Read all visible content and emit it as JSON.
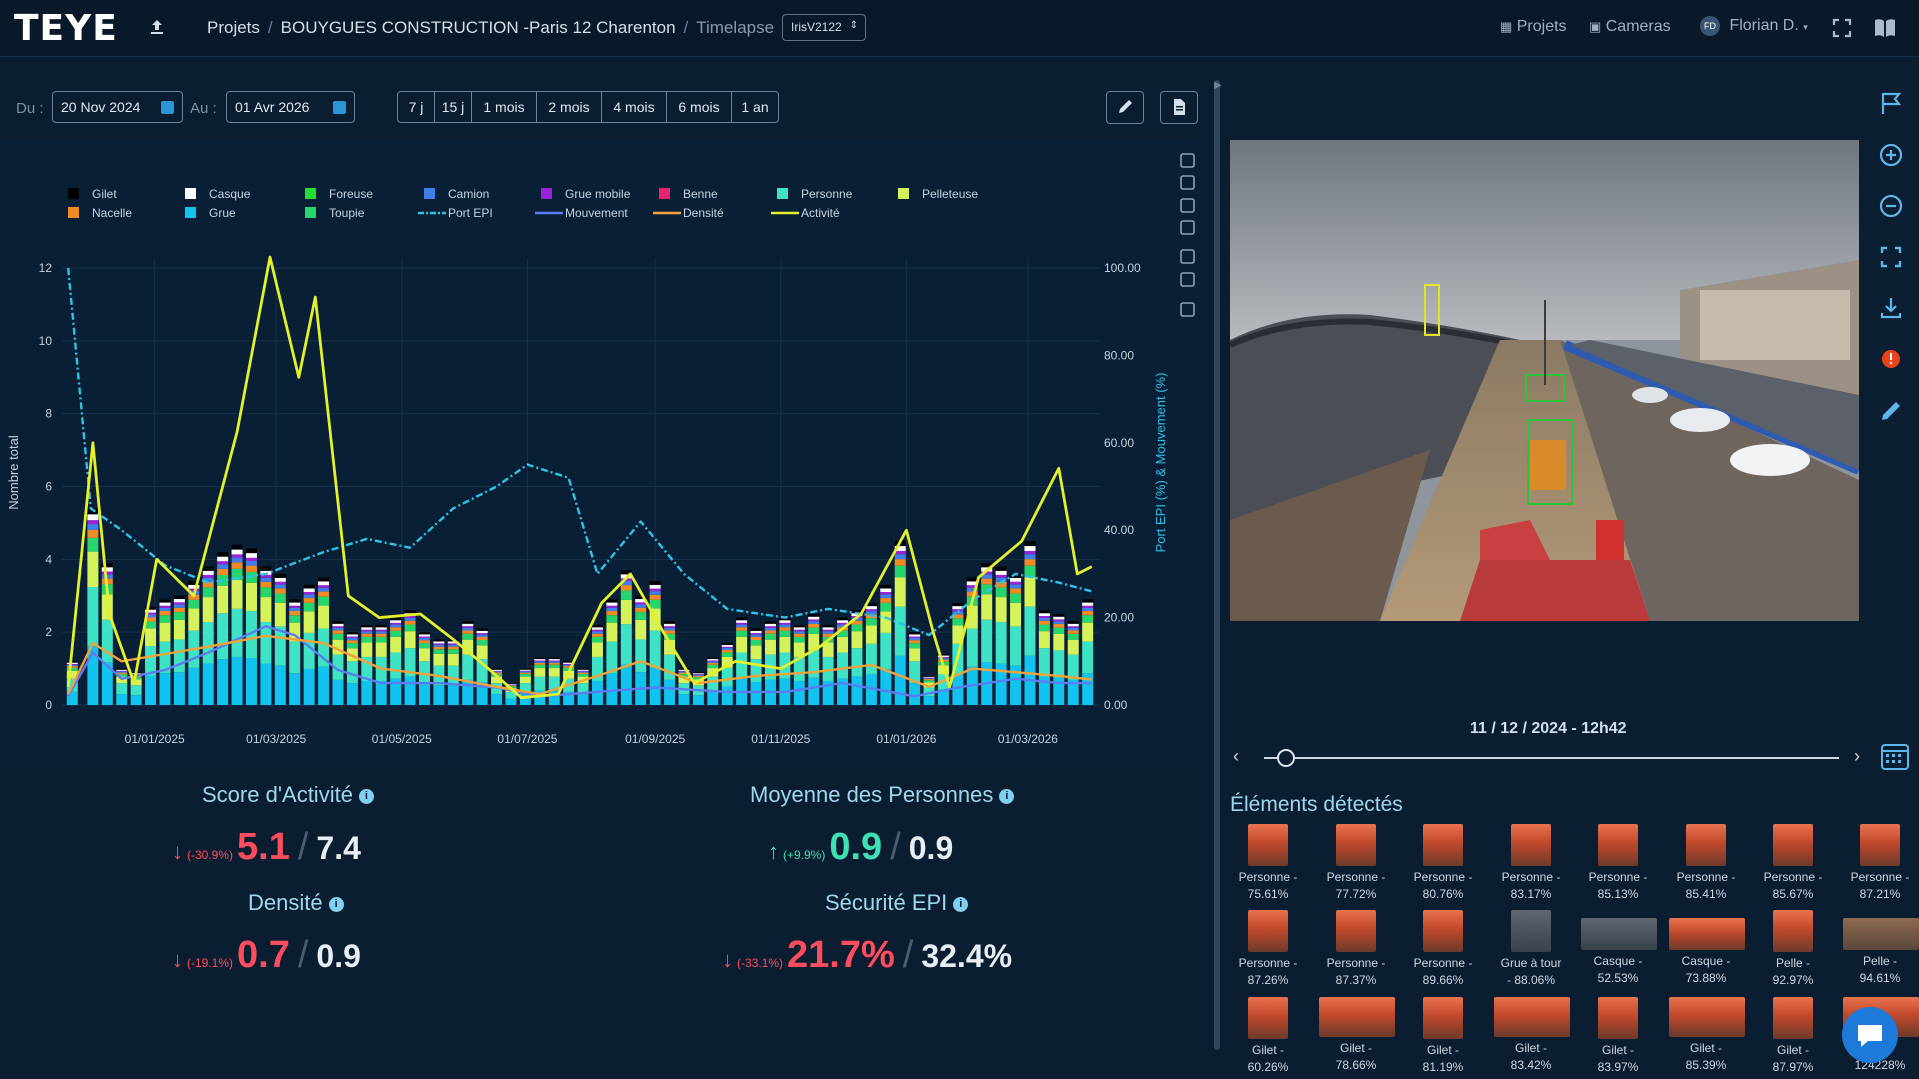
{
  "app": {
    "brand": "TEYE"
  },
  "breadcrumb": {
    "projets": "Projets",
    "project": "BOUYGUES CONSTRUCTION -Paris 12 Charenton",
    "current": "Timelapse",
    "sep": "/"
  },
  "camera_select": {
    "value": "IrisV2122"
  },
  "topnav": {
    "projets": "Projets",
    "cameras": "Cameras",
    "user": "Florian D.",
    "user_initials": "FD"
  },
  "filters": {
    "from_label": "Du :",
    "from_value": "20 Nov 2024",
    "to_label": "Au :",
    "to_value": "01 Avr 2026",
    "ranges": [
      "7 j",
      "15 j",
      "1 mois",
      "2 mois",
      "4 mois",
      "6 mois",
      "1 an"
    ]
  },
  "chart_data": {
    "type": "bar",
    "ylabel": "Nombre total",
    "y2label": "Port EPI (%) & Mouvement (%)",
    "ylim": [
      0,
      12
    ],
    "y2lim": [
      0,
      100
    ],
    "yticks": [
      "0",
      "2",
      "4",
      "6",
      "8",
      "10",
      "12"
    ],
    "y2ticks": [
      "0.00",
      "20.00",
      "40.00",
      "60.00",
      "80.00",
      "100.00"
    ],
    "xticks": [
      "01/01/2025",
      "01/03/2025",
      "01/05/2025",
      "01/07/2025",
      "01/09/2025",
      "01/11/2025",
      "01/01/2026",
      "01/03/2026"
    ],
    "legend_placement": "top-left",
    "legend": [
      {
        "name": "Gilet",
        "color": "#000000",
        "kind": "box"
      },
      {
        "name": "Casque",
        "color": "#ffffff",
        "kind": "box"
      },
      {
        "name": "Foreuse",
        "color": "#22dd33",
        "kind": "box"
      },
      {
        "name": "Camion",
        "color": "#3e7fe8",
        "kind": "box"
      },
      {
        "name": "Grue mobile",
        "color": "#9b22d8",
        "kind": "box"
      },
      {
        "name": "Benne",
        "color": "#e8226e",
        "kind": "box"
      },
      {
        "name": "Personne",
        "color": "#3ee3c5",
        "kind": "box"
      },
      {
        "name": "Pelleteuse",
        "color": "#d6f25a",
        "kind": "box"
      },
      {
        "name": "Nacelle",
        "color": "#f08a24",
        "kind": "box"
      },
      {
        "name": "Grue",
        "color": "#12c3ef",
        "kind": "box"
      },
      {
        "name": "Toupie",
        "color": "#27d56e",
        "kind": "box"
      },
      {
        "name": "Port EPI",
        "color": "#2fc3e6",
        "kind": "dash"
      },
      {
        "name": "Mouvement",
        "color": "#5d7cf0",
        "kind": "line"
      },
      {
        "name": "Densité",
        "color": "#f2a23a",
        "kind": "line"
      },
      {
        "name": "Activité",
        "color": "#e3f02a",
        "kind": "line"
      }
    ],
    "bars": [
      {
        "x": "2024-11-22",
        "total": 1.2
      },
      {
        "x": "2024-12-02",
        "total": 5.4
      },
      {
        "x": "2024-12-09",
        "total": 3.9
      },
      {
        "x": "2024-12-16",
        "total": 1.0
      },
      {
        "x": "2024-12-23",
        "total": 0.9
      },
      {
        "x": "2024-12-30",
        "total": 2.7
      },
      {
        "x": "2025-01-06",
        "total": 2.9
      },
      {
        "x": "2025-01-13",
        "total": 3.0
      },
      {
        "x": "2025-01-20",
        "total": 3.4
      },
      {
        "x": "2025-01-27",
        "total": 3.8
      },
      {
        "x": "2025-02-03",
        "total": 4.2
      },
      {
        "x": "2025-02-10",
        "total": 4.4
      },
      {
        "x": "2025-02-17",
        "total": 4.3
      },
      {
        "x": "2025-02-24",
        "total": 3.8
      },
      {
        "x": "2025-03-03",
        "total": 3.6
      },
      {
        "x": "2025-03-10",
        "total": 2.9
      },
      {
        "x": "2025-03-17",
        "total": 3.3
      },
      {
        "x": "2025-03-24",
        "total": 3.5
      },
      {
        "x": "2025-03-31",
        "total": 2.3
      },
      {
        "x": "2025-04-07",
        "total": 2.0
      },
      {
        "x": "2025-04-14",
        "total": 2.2
      },
      {
        "x": "2025-04-21",
        "total": 2.2
      },
      {
        "x": "2025-04-28",
        "total": 2.4
      },
      {
        "x": "2025-05-05",
        "total": 2.6
      },
      {
        "x": "2025-05-12",
        "total": 2.0
      },
      {
        "x": "2025-05-19",
        "total": 1.8
      },
      {
        "x": "2025-05-26",
        "total": 1.8
      },
      {
        "x": "2025-06-02",
        "total": 2.3
      },
      {
        "x": "2025-06-09",
        "total": 2.1
      },
      {
        "x": "2025-06-16",
        "total": 1.0
      },
      {
        "x": "2025-06-23",
        "total": 0.6
      },
      {
        "x": "2025-06-30",
        "total": 1.0
      },
      {
        "x": "2025-07-07",
        "total": 1.3
      },
      {
        "x": "2025-07-14",
        "total": 1.3
      },
      {
        "x": "2025-07-21",
        "total": 1.2
      },
      {
        "x": "2025-07-28",
        "total": 1.0
      },
      {
        "x": "2025-08-04",
        "total": 2.2
      },
      {
        "x": "2025-08-11",
        "total": 2.9
      },
      {
        "x": "2025-08-18",
        "total": 3.7
      },
      {
        "x": "2025-08-25",
        "total": 3.0
      },
      {
        "x": "2025-09-01",
        "total": 3.4
      },
      {
        "x": "2025-09-08",
        "total": 2.3
      },
      {
        "x": "2025-09-15",
        "total": 1.0
      },
      {
        "x": "2025-09-22",
        "total": 0.9
      },
      {
        "x": "2025-09-29",
        "total": 1.3
      },
      {
        "x": "2025-10-06",
        "total": 1.7
      },
      {
        "x": "2025-10-13",
        "total": 2.4
      },
      {
        "x": "2025-10-20",
        "total": 2.1
      },
      {
        "x": "2025-10-27",
        "total": 2.3
      },
      {
        "x": "2025-11-03",
        "total": 2.4
      },
      {
        "x": "2025-11-10",
        "total": 2.2
      },
      {
        "x": "2025-11-17",
        "total": 2.5
      },
      {
        "x": "2025-11-24",
        "total": 2.2
      },
      {
        "x": "2025-12-01",
        "total": 2.4
      },
      {
        "x": "2025-12-08",
        "total": 2.6
      },
      {
        "x": "2025-12-15",
        "total": 2.8
      },
      {
        "x": "2025-12-22",
        "total": 3.3
      },
      {
        "x": "2025-12-29",
        "total": 4.5
      },
      {
        "x": "2026-01-05",
        "total": 2.0
      },
      {
        "x": "2026-01-12",
        "total": 0.8
      },
      {
        "x": "2026-01-19",
        "total": 1.4
      },
      {
        "x": "2026-01-26",
        "total": 2.8
      },
      {
        "x": "2026-02-02",
        "total": 3.5
      },
      {
        "x": "2026-02-09",
        "total": 3.9
      },
      {
        "x": "2026-02-16",
        "total": 3.8
      },
      {
        "x": "2026-02-23",
        "total": 3.6
      },
      {
        "x": "2026-03-02",
        "total": 4.5
      },
      {
        "x": "2026-03-09",
        "total": 2.6
      },
      {
        "x": "2026-03-16",
        "total": 2.5
      },
      {
        "x": "2026-03-23",
        "total": 2.3
      },
      {
        "x": "2026-03-30",
        "total": 2.9
      }
    ],
    "series": [
      {
        "name": "Activité",
        "axis": "y",
        "points": [
          [
            "2024-11-20",
            0.5
          ],
          [
            "2024-12-02",
            7.2
          ],
          [
            "2024-12-10",
            2.5
          ],
          [
            "2024-12-22",
            0.6
          ],
          [
            "2025-01-02",
            4.0
          ],
          [
            "2025-01-20",
            3.0
          ],
          [
            "2025-02-10",
            7.5
          ],
          [
            "2025-02-26",
            12.3
          ],
          [
            "2025-03-12",
            9.0
          ],
          [
            "2025-03-20",
            11.2
          ],
          [
            "2025-04-05",
            3.0
          ],
          [
            "2025-04-20",
            2.4
          ],
          [
            "2025-05-10",
            2.5
          ],
          [
            "2025-05-26",
            1.8
          ],
          [
            "2025-06-12",
            1.0
          ],
          [
            "2025-06-28",
            0.2
          ],
          [
            "2025-07-16",
            0.3
          ],
          [
            "2025-08-06",
            2.8
          ],
          [
            "2025-08-20",
            3.6
          ],
          [
            "2025-09-05",
            2.0
          ],
          [
            "2025-09-20",
            0.6
          ],
          [
            "2025-10-10",
            1.2
          ],
          [
            "2025-11-01",
            1.0
          ],
          [
            "2025-11-20",
            1.6
          ],
          [
            "2025-12-10",
            2.5
          ],
          [
            "2026-01-01",
            4.8
          ],
          [
            "2026-01-14",
            2.0
          ],
          [
            "2026-01-22",
            0.5
          ],
          [
            "2026-02-05",
            3.5
          ],
          [
            "2026-02-26",
            4.5
          ],
          [
            "2026-03-16",
            6.5
          ],
          [
            "2026-03-25",
            3.6
          ],
          [
            "2026-04-01",
            3.8
          ]
        ]
      },
      {
        "name": "Port EPI",
        "axis": "y2",
        "points": [
          [
            "2024-11-20",
            100
          ],
          [
            "2024-12-01",
            45
          ],
          [
            "2024-12-16",
            40
          ],
          [
            "2025-01-06",
            32
          ],
          [
            "2025-01-27",
            28
          ],
          [
            "2025-02-24",
            30
          ],
          [
            "2025-03-24",
            35
          ],
          [
            "2025-04-14",
            38
          ],
          [
            "2025-05-05",
            36
          ],
          [
            "2025-05-26",
            45
          ],
          [
            "2025-06-16",
            50
          ],
          [
            "2025-07-01",
            55
          ],
          [
            "2025-07-21",
            52
          ],
          [
            "2025-08-04",
            30
          ],
          [
            "2025-08-25",
            42
          ],
          [
            "2025-09-15",
            30
          ],
          [
            "2025-10-06",
            22
          ],
          [
            "2025-11-03",
            20
          ],
          [
            "2025-11-24",
            22
          ],
          [
            "2025-12-22",
            20
          ],
          [
            "2026-01-12",
            16
          ],
          [
            "2026-02-02",
            24
          ],
          [
            "2026-02-23",
            30
          ],
          [
            "2026-03-16",
            28
          ],
          [
            "2026-04-01",
            26
          ]
        ]
      },
      {
        "name": "Mouvement",
        "axis": "y2",
        "points": [
          [
            "2024-11-20",
            2
          ],
          [
            "2024-12-02",
            12
          ],
          [
            "2024-12-16",
            6
          ],
          [
            "2025-01-06",
            8
          ],
          [
            "2025-01-27",
            12
          ],
          [
            "2025-02-24",
            18
          ],
          [
            "2025-03-10",
            16
          ],
          [
            "2025-03-31",
            8
          ],
          [
            "2025-04-21",
            5
          ],
          [
            "2025-05-19",
            5
          ],
          [
            "2025-06-16",
            4
          ],
          [
            "2025-07-07",
            2
          ],
          [
            "2025-08-04",
            3
          ],
          [
            "2025-09-01",
            4
          ],
          [
            "2025-10-06",
            3
          ],
          [
            "2025-11-03",
            3
          ],
          [
            "2025-12-01",
            5
          ],
          [
            "2026-01-05",
            2
          ],
          [
            "2026-01-26",
            4
          ],
          [
            "2026-02-23",
            6
          ],
          [
            "2026-03-16",
            5
          ],
          [
            "2026-04-01",
            5
          ]
        ]
      },
      {
        "name": "Densité",
        "axis": "y",
        "points": [
          [
            "2024-11-20",
            0.3
          ],
          [
            "2024-12-02",
            1.7
          ],
          [
            "2024-12-16",
            1.2
          ],
          [
            "2025-01-06",
            1.4
          ],
          [
            "2025-01-27",
            1.6
          ],
          [
            "2025-02-24",
            1.9
          ],
          [
            "2025-03-24",
            1.7
          ],
          [
            "2025-04-21",
            1.0
          ],
          [
            "2025-05-19",
            0.8
          ],
          [
            "2025-06-16",
            0.5
          ],
          [
            "2025-07-07",
            0.3
          ],
          [
            "2025-08-04",
            0.8
          ],
          [
            "2025-08-25",
            1.2
          ],
          [
            "2025-09-22",
            0.6
          ],
          [
            "2025-10-20",
            0.8
          ],
          [
            "2025-11-17",
            0.9
          ],
          [
            "2025-12-15",
            1.1
          ],
          [
            "2026-01-12",
            0.5
          ],
          [
            "2026-02-02",
            1.0
          ],
          [
            "2026-02-23",
            0.9
          ],
          [
            "2026-03-16",
            0.8
          ],
          [
            "2026-04-01",
            0.7
          ]
        ]
      }
    ]
  },
  "kpis": {
    "activity": {
      "title": "Score d'Activité",
      "arrow": "↓",
      "pct": "(-30.9%)",
      "value": "5.1",
      "ref": "7.4",
      "slash": "/"
    },
    "persons": {
      "title": "Moyenne des Personnes",
      "arrow": "↑",
      "pct": "(+9.9%)",
      "value": "0.9",
      "ref": "0.9",
      "slash": "/"
    },
    "density": {
      "title": "Densité",
      "arrow": "↓",
      "pct": "(-19.1%)",
      "value": "0.7",
      "ref": "0.9",
      "slash": "/"
    },
    "epi": {
      "title": "Sécurité EPI",
      "arrow": "↓",
      "pct": "(-33.1%)",
      "value": "21.7%",
      "ref": "32.4%",
      "slash": "/"
    },
    "info": "i"
  },
  "viewer": {
    "timestamp": "11 / 12 / 2024 - 12h42"
  },
  "detected": {
    "title": "Éléments détectés",
    "items": [
      {
        "l1": "Personne -",
        "l2": "75.61%",
        "kind": "person"
      },
      {
        "l1": "Personne -",
        "l2": "77.72%",
        "kind": "person"
      },
      {
        "l1": "Personne -",
        "l2": "80.76%",
        "kind": "person"
      },
      {
        "l1": "Personne -",
        "l2": "83.17%",
        "kind": "person"
      },
      {
        "l1": "Personne -",
        "l2": "85.13%",
        "kind": "person"
      },
      {
        "l1": "Personne -",
        "l2": "85.41%",
        "kind": "person"
      },
      {
        "l1": "Personne -",
        "l2": "85.67%",
        "kind": "person"
      },
      {
        "l1": "Personne -",
        "l2": "87.21%",
        "kind": "person"
      },
      {
        "l1": "Personne -",
        "l2": "87.26%",
        "kind": "person"
      },
      {
        "l1": "Personne -",
        "l2": "87.37%",
        "kind": "person"
      },
      {
        "l1": "Personne -",
        "l2": "89.66%",
        "kind": "person"
      },
      {
        "l1": "Grue à tour",
        "l2": "- 88.06%",
        "kind": "crane"
      },
      {
        "l1": "Casque -",
        "l2": "52.53%",
        "kind": "helmet-gray"
      },
      {
        "l1": "Casque -",
        "l2": "73.88%",
        "kind": "helmet"
      },
      {
        "l1": "Pelle -",
        "l2": "92.97%",
        "kind": "person"
      },
      {
        "l1": "Pelle -",
        "l2": "94.61%",
        "kind": "shovel"
      },
      {
        "l1": "Gilet -",
        "l2": "60.26%",
        "kind": "vest"
      },
      {
        "l1": "Gilet -",
        "l2": "78.66%",
        "kind": "vest-wide"
      },
      {
        "l1": "Gilet - 81.19%",
        "l2": "",
        "kind": "vest"
      },
      {
        "l1": "Gilet -",
        "l2": "83.42%",
        "kind": "vest-wide"
      },
      {
        "l1": "Gilet -",
        "l2": "83.97%",
        "kind": "vest"
      },
      {
        "l1": "Gilet -",
        "l2": "85.39%",
        "kind": "vest-wide"
      },
      {
        "l1": "Gilet -",
        "l2": "87.97%",
        "kind": "vest"
      },
      {
        "l1": "...l -",
        "l2": "124228%",
        "kind": "vest-wide"
      }
    ]
  },
  "colors": {
    "accent": "#2b95d6",
    "bg": "#0b1d30",
    "red": "#ff4d5e",
    "green": "#3fe0b4"
  }
}
